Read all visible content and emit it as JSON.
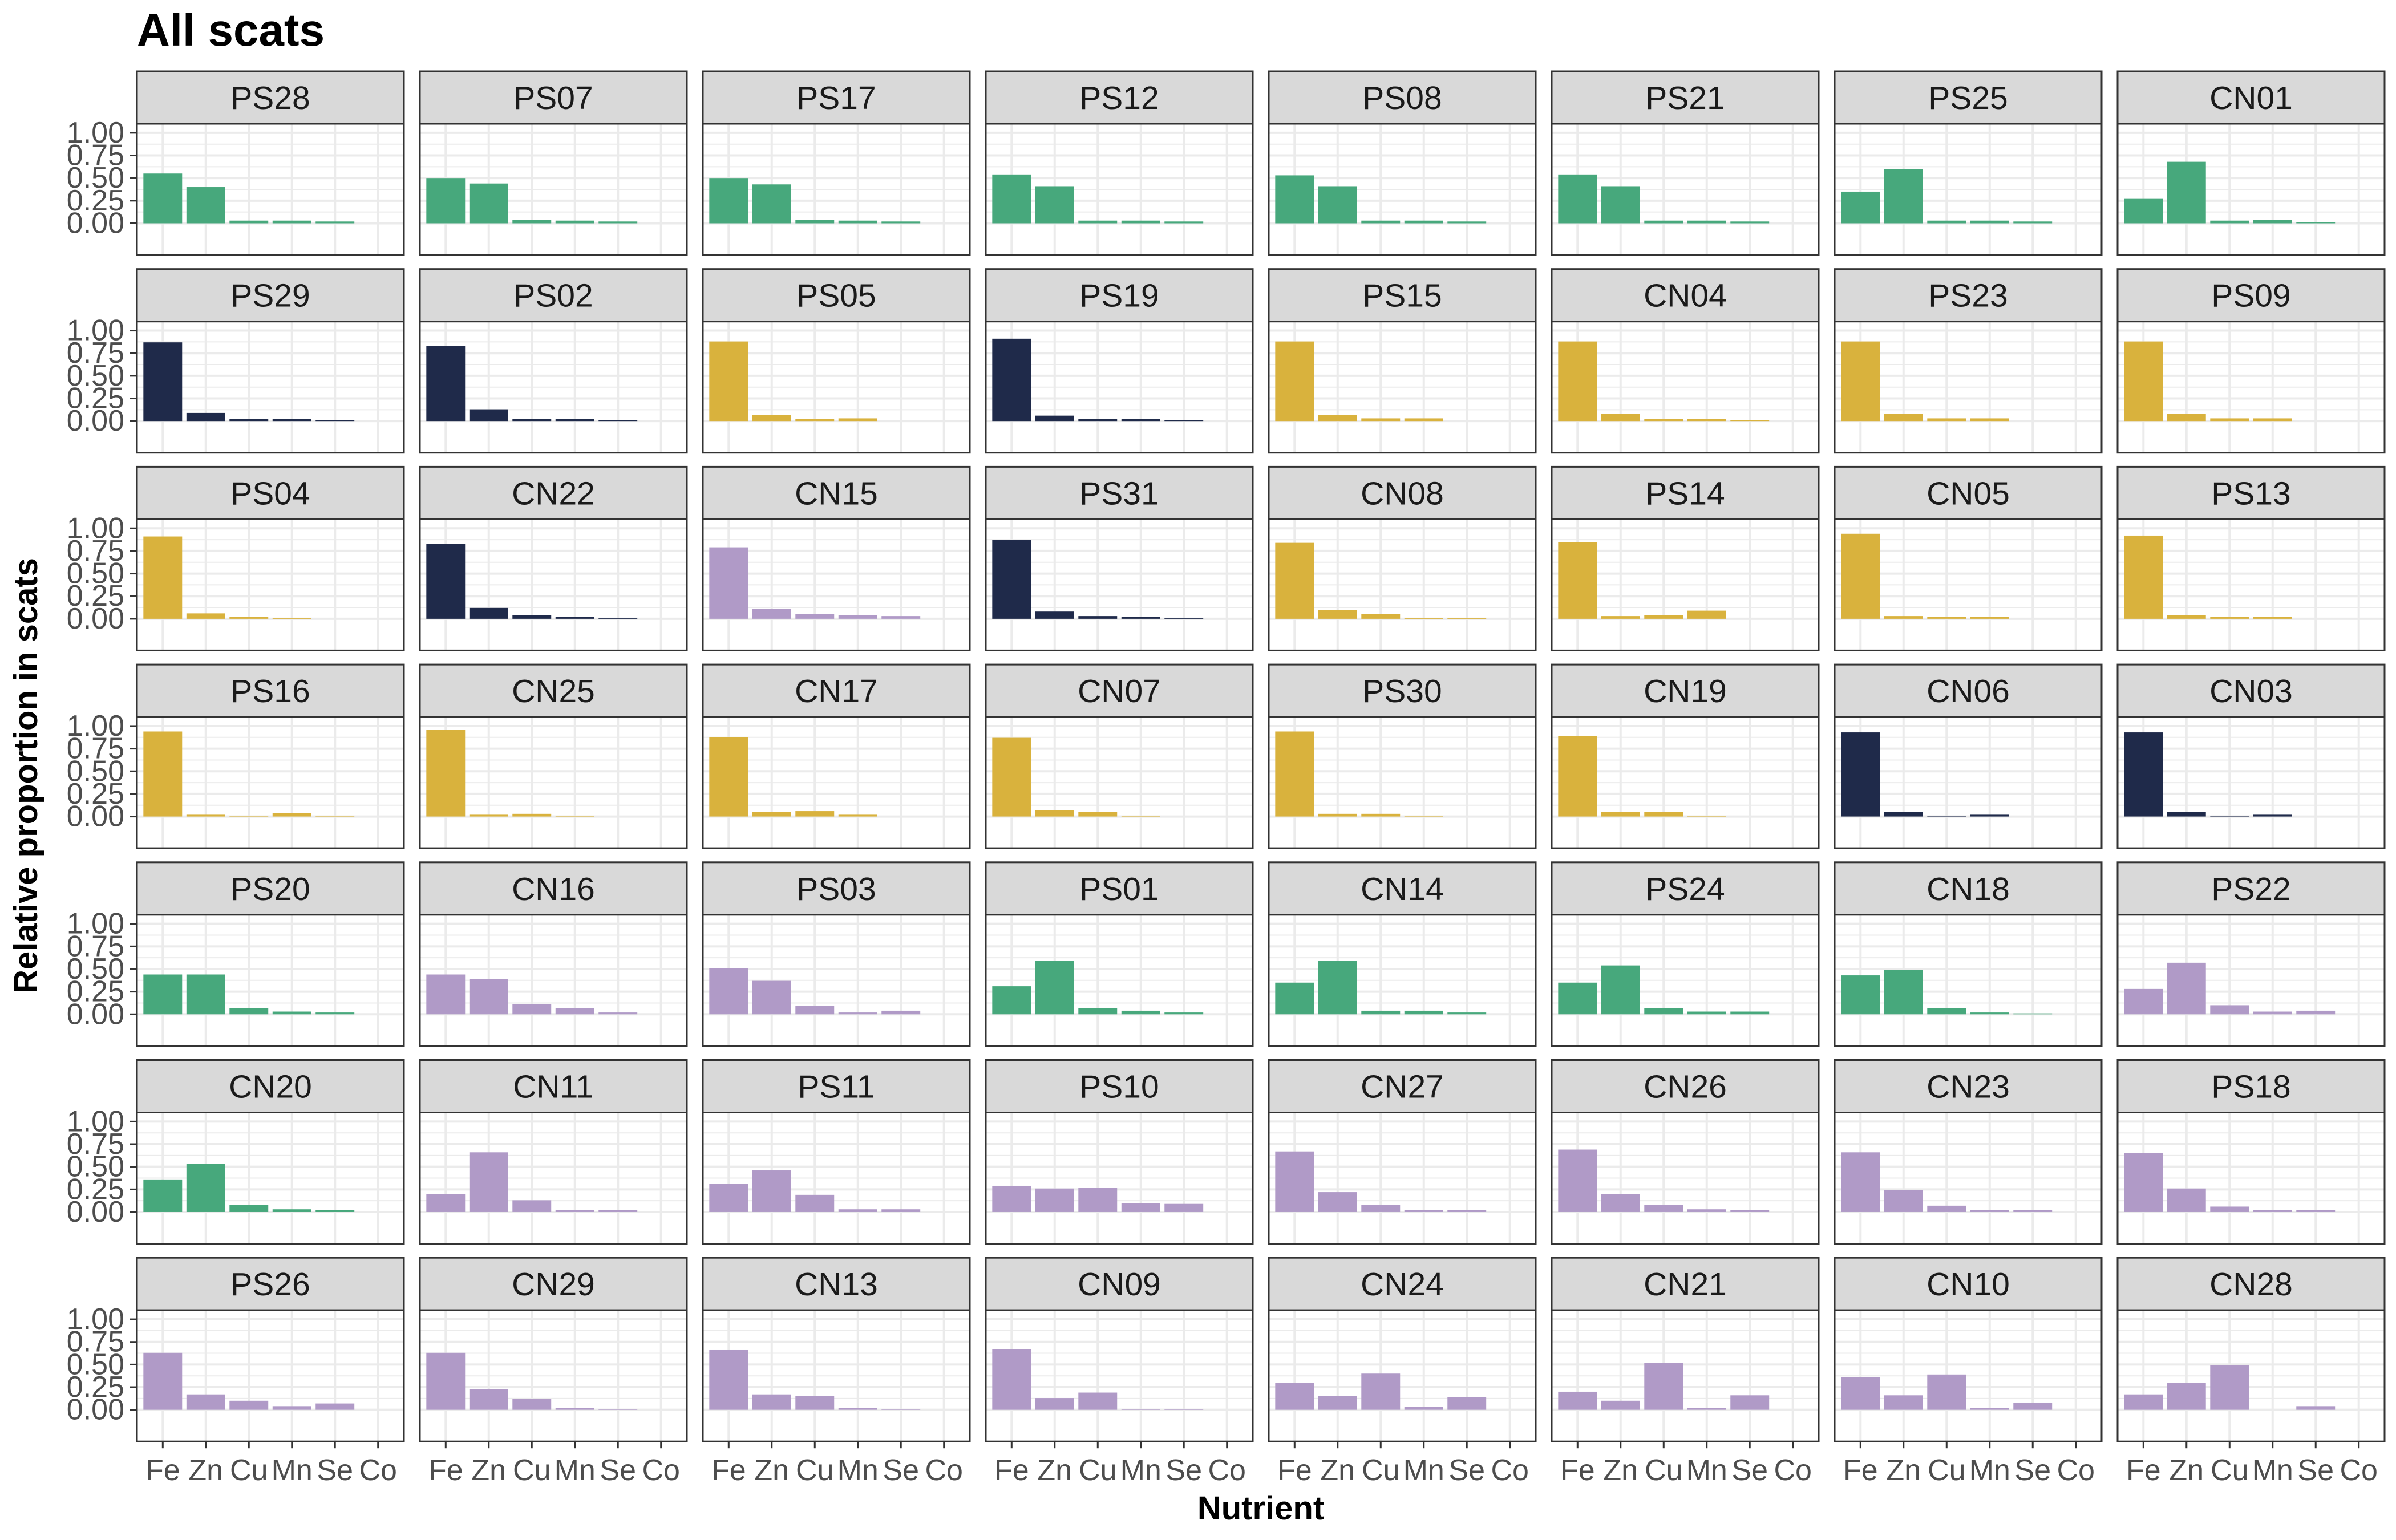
{
  "chart_data": {
    "type": "bar",
    "title": "All scats",
    "xlabel": "Nutrient",
    "ylabel": "Relative proportion in scats",
    "categories": [
      "Fe",
      "Zn",
      "Cu",
      "Mn",
      "Se",
      "Co"
    ],
    "ylim": [
      0,
      1.0
    ],
    "yticks": [
      "0.00",
      "0.25",
      "0.50",
      "0.75",
      "1.00"
    ],
    "grid": true,
    "facet_layout": {
      "rows": 7,
      "cols": 8
    },
    "colors": {
      "green": "#47a87c",
      "navy": "#1f2a4a",
      "gold": "#d9b23d",
      "purple": "#b09ac7",
      "strip_bg": "#d9d9d9",
      "grid": "#ebebeb",
      "panel_border": "#333333"
    },
    "panels": [
      {
        "label": "PS28",
        "color": "green",
        "values": [
          0.55,
          0.4,
          0.03,
          0.03,
          0.02,
          0.0
        ]
      },
      {
        "label": "PS07",
        "color": "green",
        "values": [
          0.5,
          0.44,
          0.04,
          0.03,
          0.02,
          0.0
        ]
      },
      {
        "label": "PS17",
        "color": "green",
        "values": [
          0.5,
          0.43,
          0.04,
          0.03,
          0.02,
          0.0
        ]
      },
      {
        "label": "PS12",
        "color": "green",
        "values": [
          0.54,
          0.41,
          0.03,
          0.03,
          0.02,
          0.0
        ]
      },
      {
        "label": "PS08",
        "color": "green",
        "values": [
          0.53,
          0.41,
          0.03,
          0.03,
          0.02,
          0.0
        ]
      },
      {
        "label": "PS21",
        "color": "green",
        "values": [
          0.54,
          0.41,
          0.03,
          0.03,
          0.02,
          0.0
        ]
      },
      {
        "label": "PS25",
        "color": "green",
        "values": [
          0.35,
          0.6,
          0.03,
          0.03,
          0.02,
          0.0
        ]
      },
      {
        "label": "CN01",
        "color": "green",
        "values": [
          0.27,
          0.68,
          0.03,
          0.04,
          0.01,
          0.0
        ]
      },
      {
        "label": "PS29",
        "color": "navy",
        "values": [
          0.87,
          0.09,
          0.02,
          0.02,
          0.01,
          0.0
        ]
      },
      {
        "label": "PS02",
        "color": "navy",
        "values": [
          0.83,
          0.13,
          0.02,
          0.02,
          0.01,
          0.0
        ]
      },
      {
        "label": "PS05",
        "color": "gold",
        "values": [
          0.88,
          0.07,
          0.02,
          0.03,
          0.0,
          0.0
        ]
      },
      {
        "label": "PS19",
        "color": "navy",
        "values": [
          0.91,
          0.06,
          0.02,
          0.02,
          0.01,
          0.0
        ]
      },
      {
        "label": "PS15",
        "color": "gold",
        "values": [
          0.88,
          0.07,
          0.03,
          0.03,
          0.0,
          0.0
        ]
      },
      {
        "label": "CN04",
        "color": "gold",
        "values": [
          0.88,
          0.08,
          0.02,
          0.02,
          0.01,
          0.0
        ]
      },
      {
        "label": "PS23",
        "color": "gold",
        "values": [
          0.88,
          0.08,
          0.03,
          0.03,
          0.0,
          0.0
        ]
      },
      {
        "label": "PS09",
        "color": "gold",
        "values": [
          0.88,
          0.08,
          0.03,
          0.03,
          0.0,
          0.0
        ]
      },
      {
        "label": "PS04",
        "color": "gold",
        "values": [
          0.91,
          0.06,
          0.02,
          0.01,
          0.0,
          0.0
        ]
      },
      {
        "label": "CN22",
        "color": "navy",
        "values": [
          0.83,
          0.12,
          0.04,
          0.02,
          0.01,
          0.0
        ]
      },
      {
        "label": "CN15",
        "color": "purple",
        "values": [
          0.79,
          0.11,
          0.05,
          0.04,
          0.03,
          0.0
        ]
      },
      {
        "label": "PS31",
        "color": "navy",
        "values": [
          0.87,
          0.08,
          0.03,
          0.02,
          0.01,
          0.0
        ]
      },
      {
        "label": "CN08",
        "color": "gold",
        "values": [
          0.84,
          0.1,
          0.05,
          0.01,
          0.01,
          0.0
        ]
      },
      {
        "label": "PS14",
        "color": "gold",
        "values": [
          0.85,
          0.03,
          0.04,
          0.09,
          0.0,
          0.0
        ]
      },
      {
        "label": "CN05",
        "color": "gold",
        "values": [
          0.94,
          0.03,
          0.02,
          0.02,
          0.0,
          0.0
        ]
      },
      {
        "label": "PS13",
        "color": "gold",
        "values": [
          0.92,
          0.04,
          0.02,
          0.02,
          0.0,
          0.0
        ]
      },
      {
        "label": "PS16",
        "color": "gold",
        "values": [
          0.94,
          0.02,
          0.01,
          0.04,
          0.01,
          0.0
        ]
      },
      {
        "label": "CN25",
        "color": "gold",
        "values": [
          0.96,
          0.02,
          0.03,
          0.01,
          0.0,
          0.0
        ]
      },
      {
        "label": "CN17",
        "color": "gold",
        "values": [
          0.88,
          0.05,
          0.06,
          0.02,
          0.0,
          0.0
        ]
      },
      {
        "label": "CN07",
        "color": "gold",
        "values": [
          0.87,
          0.07,
          0.05,
          0.01,
          0.0,
          0.0
        ]
      },
      {
        "label": "PS30",
        "color": "gold",
        "values": [
          0.94,
          0.03,
          0.03,
          0.01,
          0.0,
          0.0
        ]
      },
      {
        "label": "CN19",
        "color": "gold",
        "values": [
          0.89,
          0.05,
          0.05,
          0.01,
          0.0,
          0.0
        ]
      },
      {
        "label": "CN06",
        "color": "navy",
        "values": [
          0.93,
          0.05,
          0.01,
          0.02,
          0.0,
          0.0
        ]
      },
      {
        "label": "CN03",
        "color": "navy",
        "values": [
          0.93,
          0.05,
          0.01,
          0.02,
          0.0,
          0.0
        ]
      },
      {
        "label": "PS20",
        "color": "green",
        "values": [
          0.44,
          0.44,
          0.07,
          0.03,
          0.02,
          0.0
        ]
      },
      {
        "label": "CN16",
        "color": "purple",
        "values": [
          0.44,
          0.39,
          0.11,
          0.07,
          0.02,
          0.0
        ]
      },
      {
        "label": "PS03",
        "color": "purple",
        "values": [
          0.51,
          0.37,
          0.09,
          0.02,
          0.04,
          0.0
        ]
      },
      {
        "label": "PS01",
        "color": "green",
        "values": [
          0.31,
          0.59,
          0.07,
          0.04,
          0.02,
          0.0
        ]
      },
      {
        "label": "CN14",
        "color": "green",
        "values": [
          0.35,
          0.59,
          0.04,
          0.04,
          0.02,
          0.0
        ]
      },
      {
        "label": "PS24",
        "color": "green",
        "values": [
          0.35,
          0.54,
          0.07,
          0.03,
          0.03,
          0.0
        ]
      },
      {
        "label": "CN18",
        "color": "green",
        "values": [
          0.43,
          0.49,
          0.07,
          0.02,
          0.01,
          0.0
        ]
      },
      {
        "label": "PS22",
        "color": "purple",
        "values": [
          0.28,
          0.57,
          0.1,
          0.03,
          0.04,
          0.0
        ]
      },
      {
        "label": "CN20",
        "color": "green",
        "values": [
          0.36,
          0.53,
          0.08,
          0.03,
          0.02,
          0.0
        ]
      },
      {
        "label": "CN11",
        "color": "purple",
        "values": [
          0.2,
          0.66,
          0.13,
          0.02,
          0.02,
          0.0
        ]
      },
      {
        "label": "PS11",
        "color": "purple",
        "values": [
          0.31,
          0.46,
          0.19,
          0.03,
          0.03,
          0.0
        ]
      },
      {
        "label": "PS10",
        "color": "purple",
        "values": [
          0.29,
          0.26,
          0.27,
          0.1,
          0.09,
          0.0
        ]
      },
      {
        "label": "CN27",
        "color": "purple",
        "values": [
          0.67,
          0.22,
          0.08,
          0.02,
          0.02,
          0.0
        ]
      },
      {
        "label": "CN26",
        "color": "purple",
        "values": [
          0.69,
          0.2,
          0.08,
          0.03,
          0.02,
          0.0
        ]
      },
      {
        "label": "CN23",
        "color": "purple",
        "values": [
          0.66,
          0.24,
          0.07,
          0.02,
          0.02,
          0.0
        ]
      },
      {
        "label": "PS18",
        "color": "purple",
        "values": [
          0.65,
          0.26,
          0.06,
          0.02,
          0.02,
          0.0
        ]
      },
      {
        "label": "PS26",
        "color": "purple",
        "values": [
          0.63,
          0.17,
          0.1,
          0.04,
          0.07,
          0.0
        ]
      },
      {
        "label": "CN29",
        "color": "purple",
        "values": [
          0.63,
          0.23,
          0.12,
          0.02,
          0.01,
          0.0
        ]
      },
      {
        "label": "CN13",
        "color": "purple",
        "values": [
          0.66,
          0.17,
          0.15,
          0.02,
          0.01,
          0.0
        ]
      },
      {
        "label": "CN09",
        "color": "purple",
        "values": [
          0.67,
          0.13,
          0.19,
          0.01,
          0.01,
          0.0
        ]
      },
      {
        "label": "CN24",
        "color": "purple",
        "values": [
          0.3,
          0.15,
          0.4,
          0.03,
          0.14,
          0.0
        ]
      },
      {
        "label": "CN21",
        "color": "purple",
        "values": [
          0.2,
          0.1,
          0.52,
          0.02,
          0.16,
          0.0
        ]
      },
      {
        "label": "CN10",
        "color": "purple",
        "values": [
          0.36,
          0.16,
          0.39,
          0.02,
          0.08,
          0.0
        ]
      },
      {
        "label": "CN28",
        "color": "purple",
        "values": [
          0.17,
          0.3,
          0.49,
          0.0,
          0.04,
          0.0
        ]
      }
    ]
  }
}
